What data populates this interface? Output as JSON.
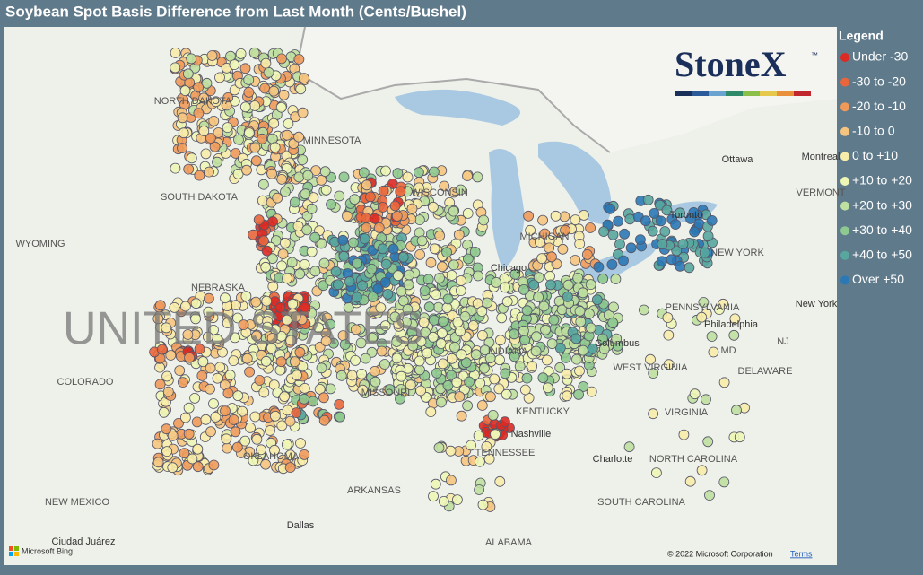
{
  "title": "Soybean Spot Basis Difference from Last Month (Cents/Bushel)",
  "legend": {
    "title": "Legend",
    "items": [
      {
        "label": "Under -30",
        "color": "#dc2a24"
      },
      {
        "label": "-30 to -20",
        "color": "#e9663c"
      },
      {
        "label": "-20 to -10",
        "color": "#f09a5a"
      },
      {
        "label": "-10 to 0",
        "color": "#f5c57f"
      },
      {
        "label": "0 to +10",
        "color": "#f8ecaa"
      },
      {
        "label": "+10 to +20",
        "color": "#eef6b6"
      },
      {
        "label": "+20 to +30",
        "color": "#bfe0a0"
      },
      {
        "label": "+30 to +40",
        "color": "#8ec98f"
      },
      {
        "label": "+40 to +50",
        "color": "#58a79e"
      },
      {
        "label": "Over +50",
        "color": "#2b78b5"
      }
    ]
  },
  "logo": {
    "name": "StoneX",
    "mark": "™"
  },
  "map_labels": [
    "NORTH DAKOTA",
    "MINNESOTA",
    "SOUTH DAKOTA",
    "WYOMING",
    "NEBRASKA",
    "UNITED STATES",
    "COLORADO",
    "MISSOURI",
    "KENTUCKY",
    "TENNESSEE",
    "OKLAHOMA",
    "ARKANSAS",
    "NEW MEXICO",
    "Dallas",
    "ALABAMA",
    "Ciudad Juárez",
    "Nashville",
    "Chicago",
    "Columbus",
    "Philadelphia",
    "NEW YORK",
    "PENNSYLVANIA",
    "WEST VIRGINIA",
    "VIRGINIA",
    "NORTH CAROLINA",
    "SOUTH CAROLINA",
    "Charlotte",
    "Ottawa",
    "Montreal",
    "VERMONT",
    "New York",
    "NJ",
    "DELAWARE",
    "MD",
    "WISCONSIN",
    "MICHIGAN",
    "INDIANA",
    "Toronto"
  ],
  "copyright": "© 2022 Microsoft Corporation",
  "terms": "Terms",
  "attribution": "Microsoft Bing"
}
